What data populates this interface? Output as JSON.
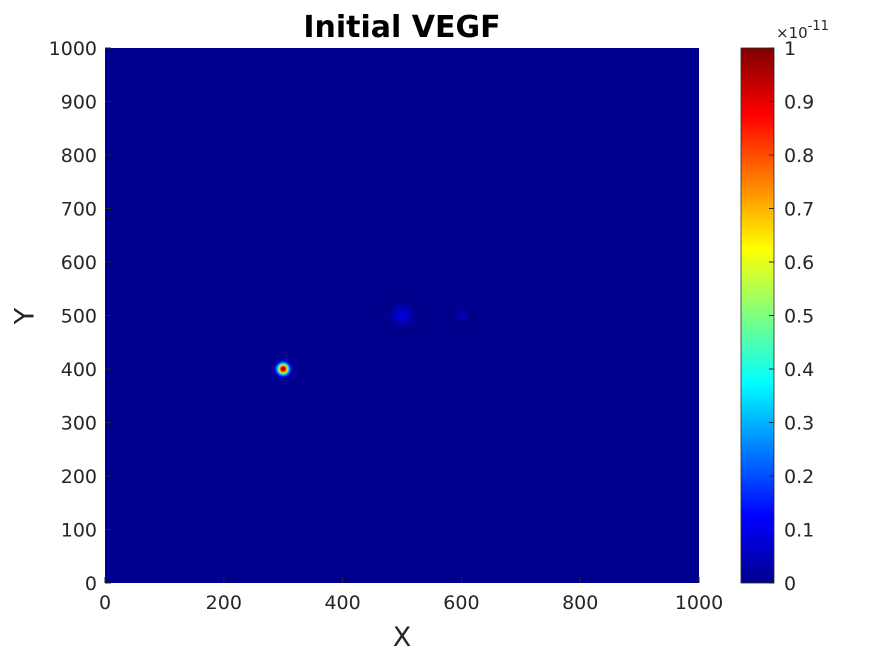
{
  "chart_data": {
    "type": "heatmap",
    "title": "Initial VEGF",
    "xlabel": "X",
    "ylabel": "Y",
    "xlim": [
      0,
      1000
    ],
    "ylim": [
      0,
      1000
    ],
    "x_ticks": [
      0,
      200,
      400,
      600,
      800,
      1000
    ],
    "y_ticks": [
      0,
      100,
      200,
      300,
      400,
      500,
      600,
      700,
      800,
      900,
      1000
    ],
    "x_tick_labels": [
      "0",
      "200",
      "400",
      "600",
      "800",
      "1000"
    ],
    "y_tick_labels": [
      "0",
      "100",
      "200",
      "300",
      "400",
      "500",
      "600",
      "700",
      "800",
      "900",
      "1000"
    ],
    "background_value": 0,
    "sources": [
      {
        "x": 300,
        "y": 400,
        "peak": 1.0,
        "radius": 12
      },
      {
        "x": 500,
        "y": 500,
        "peak": 0.09,
        "radius": 22
      },
      {
        "x": 600,
        "y": 500,
        "peak": 0.06,
        "radius": 13
      }
    ],
    "colorbar": {
      "colormap": "jet",
      "clim": [
        0,
        1
      ],
      "ticks": [
        0,
        0.1,
        0.2,
        0.3,
        0.4,
        0.5,
        0.6,
        0.7,
        0.8,
        0.9,
        1
      ],
      "tick_labels": [
        "0",
        "0.1",
        "0.2",
        "0.3",
        "0.4",
        "0.5",
        "0.6",
        "0.7",
        "0.8",
        "0.9",
        "1"
      ],
      "multiplier_prefix": "×10",
      "multiplier_exponent": "-11"
    },
    "grid": false
  }
}
